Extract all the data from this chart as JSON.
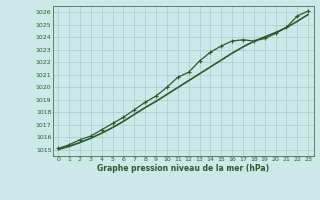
{
  "xlabel": "Graphe pression niveau de la mer (hPa)",
  "ylim": [
    1014.5,
    1026.5
  ],
  "xlim": [
    -0.5,
    23.5
  ],
  "yticks": [
    1015,
    1016,
    1017,
    1018,
    1019,
    1020,
    1021,
    1022,
    1023,
    1024,
    1025,
    1026
  ],
  "xticks": [
    0,
    1,
    2,
    3,
    4,
    5,
    6,
    7,
    8,
    9,
    10,
    11,
    12,
    13,
    14,
    15,
    16,
    17,
    18,
    19,
    20,
    21,
    22,
    23
  ],
  "bg_color": "#cce8e8",
  "line_color": "#2d5a2d",
  "grid_color": "#aacccc",
  "series_marked": [
    1015.1,
    1015.4,
    1015.8,
    1016.1,
    1016.6,
    1017.1,
    1017.6,
    1018.2,
    1018.8,
    1019.3,
    1020.0,
    1020.8,
    1021.2,
    1022.1,
    1022.8,
    1023.3,
    1023.7,
    1023.8,
    1023.7,
    1023.9,
    1024.3,
    1024.8,
    1025.7,
    1026.1
  ],
  "series_smooth1": [
    1015.05,
    1015.3,
    1015.6,
    1015.95,
    1016.35,
    1016.8,
    1017.3,
    1017.85,
    1018.4,
    1018.9,
    1019.45,
    1020.0,
    1020.55,
    1021.1,
    1021.65,
    1022.2,
    1022.75,
    1023.25,
    1023.7,
    1024.05,
    1024.4,
    1024.8,
    1025.3,
    1025.85
  ],
  "series_smooth2": [
    1015.0,
    1015.25,
    1015.55,
    1015.9,
    1016.3,
    1016.75,
    1017.25,
    1017.8,
    1018.35,
    1018.85,
    1019.4,
    1019.95,
    1020.5,
    1021.05,
    1021.6,
    1022.15,
    1022.7,
    1023.2,
    1023.65,
    1024.0,
    1024.35,
    1024.75,
    1025.25,
    1025.8
  ]
}
